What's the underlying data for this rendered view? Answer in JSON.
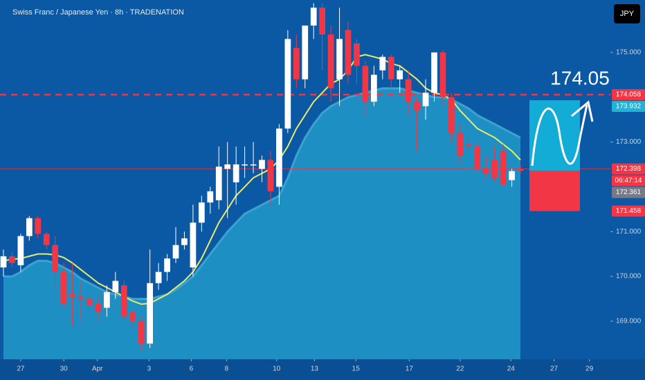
{
  "chart_data": {
    "type": "candlestick",
    "title": "Swiss Franc / Japanese Yen · 8h · TRADENATION",
    "currency": "JPY",
    "target_label": "174.05",
    "up_color": "#ffffff",
    "down_color": "#f23645",
    "xlim": [
      -0.4,
      70.44
    ],
    "xticks": [
      {
        "value": 2.0,
        "label": "27"
      },
      {
        "value": 7.0,
        "label": "30"
      },
      {
        "value": 10.9,
        "label": "Apr"
      },
      {
        "value": 16.9,
        "label": "3"
      },
      {
        "value": 21.8,
        "label": "6"
      },
      {
        "value": 25.9,
        "label": "8"
      },
      {
        "value": 31.7,
        "label": "10"
      },
      {
        "value": 36.1,
        "label": "13"
      },
      {
        "value": 40.9,
        "label": "15"
      },
      {
        "value": 47.1,
        "label": "17"
      },
      {
        "value": 53.0,
        "label": "22"
      },
      {
        "value": 58.9,
        "label": "24"
      },
      {
        "value": 63.9,
        "label": "27"
      },
      {
        "value": 68.0,
        "label": "29"
      }
    ],
    "ylim": [
      168.15,
      176.17
    ],
    "yticks": [
      {
        "value": 169,
        "label": "169.000"
      },
      {
        "value": 170,
        "label": "170.000"
      },
      {
        "value": 171,
        "label": "171.000"
      },
      {
        "value": 173,
        "label": "173.000"
      },
      {
        "value": 175,
        "label": "175.000"
      }
    ],
    "open": [
      170.2,
      170.45,
      170.25,
      170.9,
      171.3,
      170.95,
      170.7,
      170.1,
      169.6,
      169.55,
      169.5,
      169.4,
      169.3,
      169.65,
      169.8,
      169.2,
      169.0,
      168.5,
      169.85,
      170.1,
      170.4,
      170.7,
      170.2,
      171.2,
      171.65,
      171.7,
      172.4,
      172.1,
      172.5,
      172.5,
      172.4,
      172.6,
      172.0,
      173.3,
      175.1,
      174.4,
      175.6,
      176.0,
      175.4,
      174.4,
      175.5,
      175.2,
      174.7,
      173.9,
      174.6,
      174.9,
      174.4,
      174.4,
      173.9,
      173.8,
      174.1,
      175.0,
      174.0,
      173.2,
      172.95,
      172.9,
      172.4,
      172.6,
      172.8,
      172.15,
      172.4
    ],
    "high": [
      170.6,
      170.55,
      170.95,
      171.35,
      171.35,
      171.0,
      170.9,
      170.3,
      170.3,
      169.9,
      169.6,
      169.6,
      169.8,
      170.1,
      169.9,
      169.3,
      169.1,
      170.6,
      170.3,
      170.5,
      171.1,
      171.0,
      171.6,
      171.8,
      172.0,
      172.9,
      173.0,
      172.9,
      172.9,
      173.0,
      172.7,
      172.8,
      173.4,
      175.5,
      175.4,
      175.6,
      176.1,
      176.1,
      175.6,
      176.0,
      175.7,
      175.3,
      174.8,
      174.7,
      174.95,
      174.95,
      174.7,
      174.6,
      174.0,
      174.4,
      175.0,
      175.05,
      174.1,
      173.4,
      173.1,
      173.0,
      172.7,
      172.9,
      172.95,
      172.4,
      172.5
    ],
    "low": [
      170.0,
      170.2,
      170.1,
      170.8,
      170.85,
      170.6,
      169.6,
      169.3,
      168.9,
      169.0,
      169.2,
      169.0,
      169.1,
      169.5,
      169.0,
      168.8,
      168.35,
      168.4,
      169.7,
      169.9,
      170.3,
      170.6,
      170.0,
      171.0,
      171.4,
      171.5,
      171.3,
      171.6,
      172.2,
      172.3,
      172.1,
      171.6,
      171.6,
      173.2,
      174.2,
      174.2,
      175.3,
      174.6,
      173.9,
      173.8,
      174.3,
      174.3,
      173.6,
      173.8,
      174.4,
      174.2,
      174.1,
      173.6,
      172.8,
      173.5,
      173.9,
      173.8,
      173.0,
      172.5,
      172.8,
      172.3,
      172.2,
      172.1,
      172.0,
      172.0,
      172.3
    ],
    "close": [
      170.45,
      170.3,
      170.9,
      171.3,
      170.95,
      170.7,
      170.1,
      169.4,
      169.55,
      169.5,
      169.35,
      169.2,
      169.65,
      169.9,
      169.1,
      169.0,
      168.5,
      169.85,
      170.1,
      170.4,
      170.7,
      170.85,
      171.2,
      171.65,
      171.9,
      172.45,
      172.5,
      172.5,
      172.5,
      172.5,
      172.6,
      171.9,
      173.3,
      175.3,
      174.4,
      175.6,
      176.0,
      175.4,
      174.2,
      175.3,
      174.5,
      174.7,
      173.9,
      174.5,
      174.9,
      174.4,
      174.6,
      173.9,
      173.7,
      174.1,
      175.0,
      174.0,
      173.2,
      172.7,
      172.9,
      172.4,
      172.3,
      172.2,
      172.05,
      172.35,
      172.36
    ],
    "band": {
      "color": "#1e8fc2",
      "values": [
        170.0,
        170.0,
        170.1,
        170.25,
        170.35,
        170.35,
        170.3,
        170.2,
        170.1,
        169.95,
        169.85,
        169.75,
        169.65,
        169.6,
        169.55,
        169.5,
        169.5,
        169.5,
        169.55,
        169.6,
        169.7,
        169.85,
        170.0,
        170.25,
        170.5,
        170.75,
        171.0,
        171.2,
        171.4,
        171.5,
        171.6,
        171.7,
        171.8,
        172.2,
        172.7,
        173.1,
        173.4,
        173.65,
        173.8,
        173.9,
        174.0,
        174.05,
        174.1,
        174.15,
        174.2,
        174.2,
        174.2,
        174.15,
        174.1,
        174.05,
        174.0,
        174.0,
        173.95,
        173.85,
        173.75,
        173.6,
        173.5,
        173.4,
        173.3,
        173.2,
        173.1
      ]
    },
    "moving_average": {
      "color": "#e8ec6a",
      "values": [
        170.35,
        170.38,
        170.4,
        170.45,
        170.5,
        170.5,
        170.48,
        170.42,
        170.3,
        170.15,
        170.0,
        169.85,
        169.75,
        169.65,
        169.55,
        169.45,
        169.38,
        169.4,
        169.5,
        169.6,
        169.75,
        169.9,
        170.1,
        170.4,
        170.8,
        171.2,
        171.5,
        171.8,
        172.0,
        172.2,
        172.3,
        172.4,
        172.6,
        172.9,
        173.3,
        173.6,
        173.9,
        174.1,
        174.3,
        174.4,
        174.6,
        174.9,
        174.95,
        174.9,
        174.85,
        174.75,
        174.7,
        174.55,
        174.4,
        174.2,
        174.1,
        174.05,
        173.95,
        173.7,
        173.5,
        173.3,
        173.2,
        173.1,
        172.95,
        172.8,
        172.6
      ]
    },
    "price_labels": [
      {
        "value": 174.058,
        "color": "#f23645"
      },
      {
        "value": 173.932,
        "color": "#22b2d4"
      },
      {
        "value": 172.398,
        "color": "#f23645"
      },
      {
        "value": 172.361,
        "color": "#787b86"
      },
      {
        "value": 171.458,
        "color": "#f23645"
      }
    ],
    "countdown": "06:47:14"
  }
}
